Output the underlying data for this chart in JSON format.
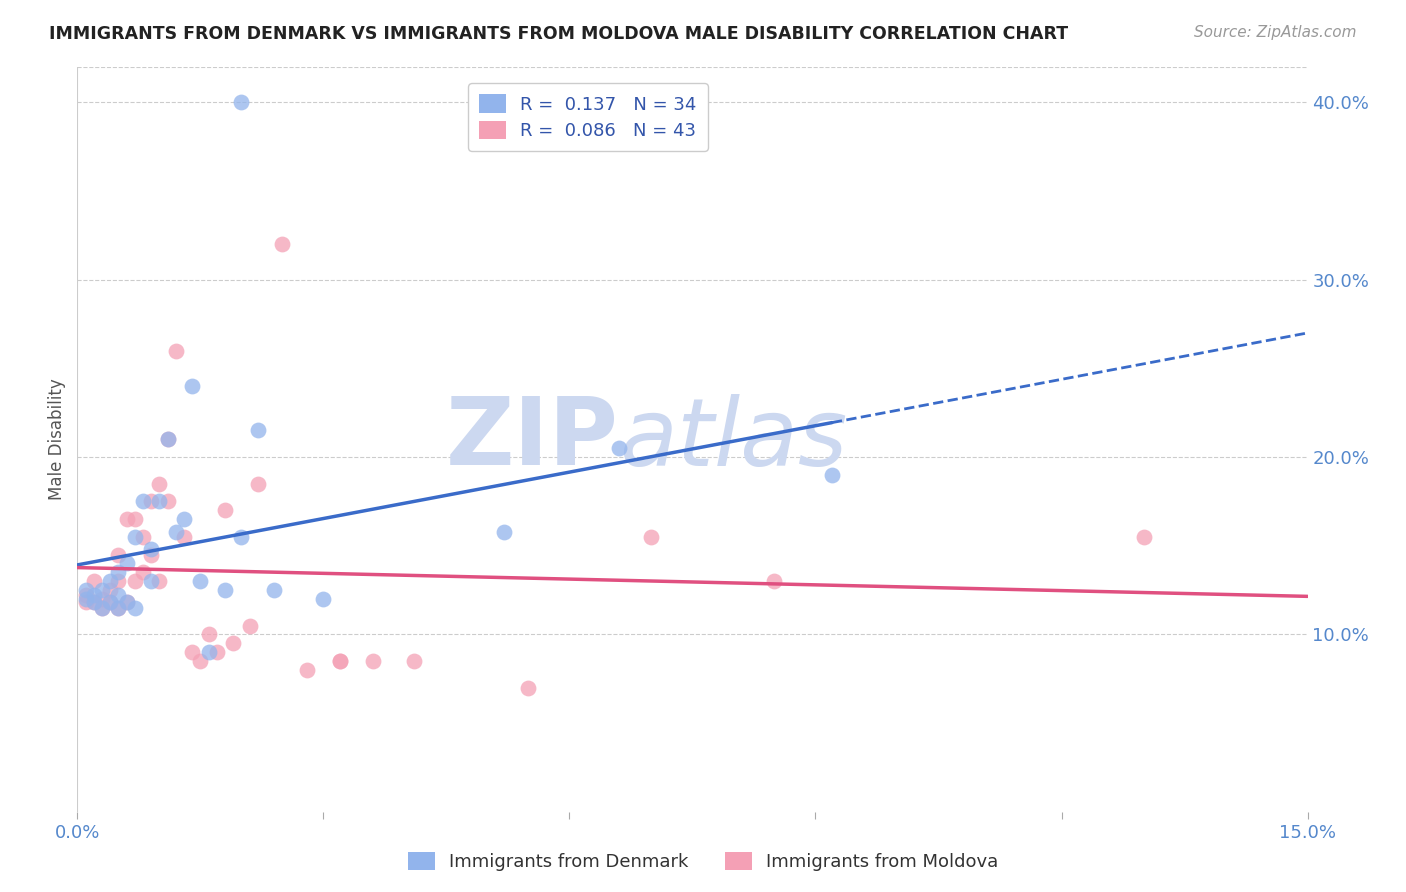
{
  "title": "IMMIGRANTS FROM DENMARK VS IMMIGRANTS FROM MOLDOVA MALE DISABILITY CORRELATION CHART",
  "source": "Source: ZipAtlas.com",
  "ylabel": "Male Disability",
  "xlim": [
    0.0,
    0.15
  ],
  "ylim": [
    0.0,
    0.42
  ],
  "yticks_right": [
    0.1,
    0.2,
    0.3,
    0.4
  ],
  "ytick_labels_right": [
    "10.0%",
    "20.0%",
    "30.0%",
    "40.0%"
  ],
  "denmark_color": "#92b4ec",
  "moldova_color": "#f4a0b5",
  "denmark_line_color": "#3a6bc9",
  "moldova_line_color": "#e05080",
  "denmark_R": 0.137,
  "denmark_N": 34,
  "moldova_R": 0.086,
  "moldova_N": 43,
  "denmark_x": [
    0.001,
    0.001,
    0.002,
    0.002,
    0.003,
    0.003,
    0.004,
    0.004,
    0.005,
    0.005,
    0.005,
    0.006,
    0.006,
    0.007,
    0.007,
    0.008,
    0.009,
    0.009,
    0.01,
    0.011,
    0.012,
    0.013,
    0.014,
    0.015,
    0.016,
    0.018,
    0.02,
    0.022,
    0.024,
    0.03,
    0.052,
    0.066,
    0.092,
    0.02
  ],
  "denmark_y": [
    0.12,
    0.125,
    0.118,
    0.122,
    0.115,
    0.125,
    0.118,
    0.13,
    0.115,
    0.122,
    0.135,
    0.118,
    0.14,
    0.115,
    0.155,
    0.175,
    0.13,
    0.148,
    0.175,
    0.21,
    0.158,
    0.165,
    0.24,
    0.13,
    0.09,
    0.125,
    0.155,
    0.215,
    0.125,
    0.12,
    0.158,
    0.205,
    0.19,
    0.4
  ],
  "moldova_x": [
    0.001,
    0.001,
    0.002,
    0.002,
    0.003,
    0.003,
    0.004,
    0.004,
    0.005,
    0.005,
    0.005,
    0.006,
    0.006,
    0.007,
    0.007,
    0.008,
    0.008,
    0.009,
    0.009,
    0.01,
    0.01,
    0.011,
    0.011,
    0.012,
    0.013,
    0.014,
    0.015,
    0.016,
    0.017,
    0.018,
    0.019,
    0.021,
    0.022,
    0.025,
    0.028,
    0.032,
    0.032,
    0.036,
    0.041,
    0.055,
    0.07,
    0.085,
    0.13
  ],
  "moldova_y": [
    0.118,
    0.122,
    0.118,
    0.13,
    0.115,
    0.12,
    0.118,
    0.125,
    0.115,
    0.13,
    0.145,
    0.118,
    0.165,
    0.13,
    0.165,
    0.135,
    0.155,
    0.145,
    0.175,
    0.13,
    0.185,
    0.175,
    0.21,
    0.26,
    0.155,
    0.09,
    0.085,
    0.1,
    0.09,
    0.17,
    0.095,
    0.105,
    0.185,
    0.32,
    0.08,
    0.085,
    0.085,
    0.085,
    0.085,
    0.07,
    0.155,
    0.13,
    0.155
  ],
  "watermark_zip": "ZIP",
  "watermark_atlas": "atlas",
  "watermark_color": "#ccd8f0",
  "background_color": "#ffffff",
  "grid_color": "#cccccc",
  "tick_color": "#5588cc",
  "title_color": "#222222",
  "source_color": "#999999",
  "ylabel_color": "#555555"
}
